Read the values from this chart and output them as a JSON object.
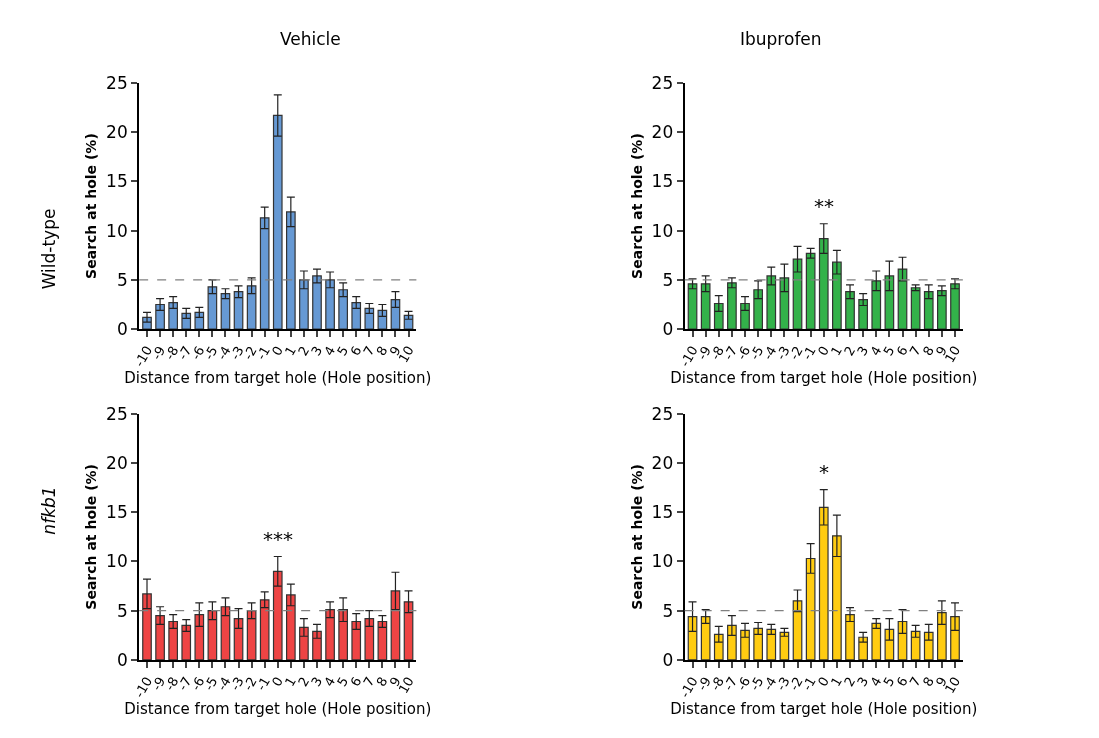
{
  "chart_data": [
    {
      "type": "bar",
      "title": "Vehicle",
      "xlabel": "Distance from target hole (Hole position)",
      "ylabel": "Search at hole (%)",
      "categories": [
        "-10",
        "-9",
        "-8",
        "-7",
        "-6",
        "-5",
        "-4",
        "-3",
        "-2",
        "-1",
        "0",
        "1",
        "2",
        "3",
        "4",
        "5",
        "6",
        "7",
        "8",
        "9",
        "10"
      ],
      "color": "#6699d4",
      "values": [
        1.2,
        2.5,
        2.7,
        1.6,
        1.7,
        4.3,
        3.6,
        3.8,
        4.4,
        11.3,
        21.7,
        11.9,
        5.0,
        5.4,
        5.0,
        4.0,
        2.7,
        2.1,
        1.9,
        3.0,
        1.4
      ],
      "errors": [
        0.5,
        0.6,
        0.6,
        0.5,
        0.5,
        0.7,
        0.5,
        0.6,
        0.8,
        1.1,
        2.1,
        1.5,
        0.9,
        0.7,
        0.8,
        0.7,
        0.6,
        0.5,
        0.6,
        0.8,
        0.4
      ],
      "ylim": [
        0,
        25
      ],
      "yticks": [
        0,
        5,
        10,
        15,
        20,
        25
      ],
      "ref_lines": [
        {
          "axis": "y",
          "value": 5,
          "color": "#808080",
          "line_style": "dashed"
        }
      ],
      "annotations": [
        "Wild-type"
      ]
    },
    {
      "type": "bar",
      "title": "Ibuprofen",
      "xlabel": "Distance from target hole (Hole position)",
      "ylabel": "Search at hole (%)",
      "categories": [
        "-10",
        "-9",
        "-8",
        "-7",
        "-6",
        "-5",
        "-4",
        "-3",
        "-2",
        "-1",
        "0",
        "1",
        "2",
        "3",
        "4",
        "5",
        "6",
        "7",
        "8",
        "9",
        "10"
      ],
      "color": "#33b24a",
      "values": [
        4.6,
        4.6,
        2.6,
        4.7,
        2.6,
        4.0,
        5.4,
        5.2,
        7.1,
        7.7,
        9.2,
        6.8,
        3.8,
        3.0,
        4.9,
        5.4,
        6.1,
        4.2,
        3.8,
        3.9,
        4.6
      ],
      "errors": [
        0.5,
        0.8,
        0.8,
        0.5,
        0.7,
        0.9,
        0.9,
        1.4,
        1.3,
        0.5,
        1.5,
        1.2,
        0.7,
        0.6,
        1.0,
        1.5,
        1.2,
        0.3,
        0.7,
        0.5,
        0.5
      ],
      "ylim": [
        0,
        25
      ],
      "yticks": [
        0,
        5,
        10,
        15,
        20,
        25
      ],
      "ref_lines": [
        {
          "axis": "y",
          "value": 5,
          "color": "#808080",
          "line_style": "dashed"
        }
      ],
      "annotations": [
        "**"
      ]
    },
    {
      "type": "bar",
      "xlabel": "Distance from target hole (Hole position)",
      "ylabel": "Search at hole (%)",
      "categories": [
        "-10",
        "-9",
        "-8",
        "-7",
        "-6",
        "-5",
        "-4",
        "-3",
        "-2",
        "-1",
        "0",
        "1",
        "2",
        "3",
        "4",
        "5",
        "6",
        "7",
        "8",
        "9",
        "10"
      ],
      "color": "#ee4444",
      "values": [
        6.7,
        4.5,
        3.9,
        3.5,
        4.6,
        5.0,
        5.4,
        4.2,
        5.0,
        6.1,
        9.0,
        6.6,
        3.3,
        2.9,
        5.1,
        5.1,
        3.9,
        4.2,
        3.9,
        7.0,
        5.9
      ],
      "errors": [
        1.5,
        0.9,
        0.7,
        0.6,
        1.2,
        0.9,
        0.9,
        1.0,
        0.8,
        0.8,
        1.5,
        1.1,
        0.9,
        0.7,
        0.8,
        1.2,
        0.8,
        0.8,
        0.6,
        1.9,
        1.1
      ],
      "ylim": [
        0,
        25
      ],
      "yticks": [
        0,
        5,
        10,
        15,
        20,
        25
      ],
      "ref_lines": [
        {
          "axis": "y",
          "value": 5,
          "color": "#808080",
          "line_style": "dashed"
        }
      ],
      "annotations": [
        "nfkb1",
        "***"
      ]
    },
    {
      "type": "bar",
      "xlabel": "Distance from target hole (Hole position)",
      "ylabel": "Search at hole (%)",
      "categories": [
        "-10",
        "-9",
        "-8",
        "-7",
        "-6",
        "-5",
        "-4",
        "-3",
        "-2",
        "-1",
        "0",
        "1",
        "2",
        "3",
        "4",
        "5",
        "6",
        "7",
        "8",
        "9",
        "10"
      ],
      "color": "#ffcc11",
      "values": [
        4.4,
        4.4,
        2.6,
        3.5,
        3.0,
        3.2,
        3.1,
        2.8,
        6.0,
        10.3,
        15.5,
        12.6,
        4.6,
        2.3,
        3.7,
        3.1,
        3.9,
        2.9,
        2.8,
        4.8,
        4.4
      ],
      "errors": [
        1.5,
        0.7,
        0.8,
        1.0,
        0.7,
        0.6,
        0.5,
        0.4,
        1.1,
        1.5,
        1.8,
        2.1,
        0.7,
        0.5,
        0.5,
        1.1,
        1.2,
        0.6,
        0.8,
        1.2,
        1.4
      ],
      "ylim": [
        0,
        25
      ],
      "yticks": [
        0,
        5,
        10,
        15,
        20,
        25
      ],
      "ref_lines": [
        {
          "axis": "y",
          "value": 5,
          "color": "#808080",
          "line_style": "dashed"
        }
      ],
      "annotations": [
        "*"
      ]
    }
  ]
}
